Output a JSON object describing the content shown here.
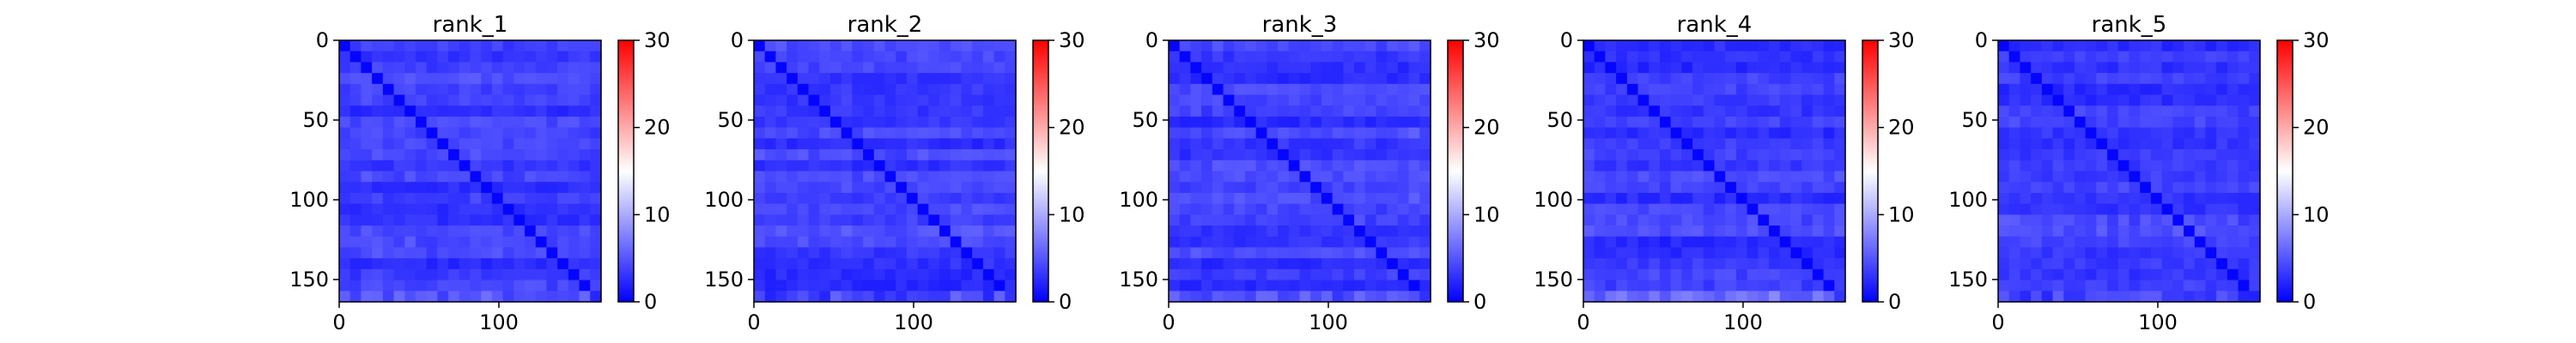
{
  "chart_data": [
    {
      "type": "heatmap",
      "title": "rank_1",
      "xlabel": "",
      "ylabel": "",
      "xlim": [
        0,
        164
      ],
      "ylim": [
        164,
        0
      ],
      "xticks": [
        "0",
        "100"
      ],
      "yticks": [
        "0",
        "50",
        "100",
        "150"
      ],
      "colorbar": {
        "min": 0,
        "max": 30,
        "ticks": [
          "0",
          "10",
          "20",
          "30"
        ],
        "colormap": "bwr",
        "colors": [
          "#0000ff",
          "#ffffff",
          "#ff0000"
        ]
      }
    },
    {
      "type": "heatmap",
      "title": "rank_2",
      "xlabel": "",
      "ylabel": "",
      "xlim": [
        0,
        164
      ],
      "ylim": [
        164,
        0
      ],
      "xticks": [
        "0",
        "100"
      ],
      "yticks": [
        "0",
        "50",
        "100",
        "150"
      ],
      "colorbar": {
        "min": 0,
        "max": 30,
        "ticks": [
          "0",
          "10",
          "20",
          "30"
        ],
        "colormap": "bwr",
        "colors": [
          "#0000ff",
          "#ffffff",
          "#ff0000"
        ]
      }
    },
    {
      "type": "heatmap",
      "title": "rank_3",
      "xlabel": "",
      "ylabel": "",
      "xlim": [
        0,
        164
      ],
      "ylim": [
        164,
        0
      ],
      "xticks": [
        "0",
        "100"
      ],
      "yticks": [
        "0",
        "50",
        "100",
        "150"
      ],
      "colorbar": {
        "min": 0,
        "max": 30,
        "ticks": [
          "0",
          "10",
          "20",
          "30"
        ],
        "colormap": "bwr",
        "colors": [
          "#0000ff",
          "#ffffff",
          "#ff0000"
        ]
      }
    },
    {
      "type": "heatmap",
      "title": "rank_4",
      "xlabel": "",
      "ylabel": "",
      "xlim": [
        0,
        164
      ],
      "ylim": [
        164,
        0
      ],
      "xticks": [
        "0",
        "100"
      ],
      "yticks": [
        "0",
        "50",
        "100",
        "150"
      ],
      "colorbar": {
        "min": 0,
        "max": 30,
        "ticks": [
          "0",
          "10",
          "20",
          "30"
        ],
        "colormap": "bwr",
        "colors": [
          "#0000ff",
          "#ffffff",
          "#ff0000"
        ]
      }
    },
    {
      "type": "heatmap",
      "title": "rank_5",
      "xlabel": "",
      "ylabel": "",
      "xlim": [
        0,
        164
      ],
      "ylim": [
        164,
        0
      ],
      "xticks": [
        "0",
        "100"
      ],
      "yticks": [
        "0",
        "50",
        "100",
        "150"
      ],
      "colorbar": {
        "min": 0,
        "max": 30,
        "ticks": [
          "0",
          "10",
          "20",
          "30"
        ],
        "colormap": "bwr",
        "colors": [
          "#0000ff",
          "#ffffff",
          "#ff0000"
        ]
      }
    }
  ]
}
